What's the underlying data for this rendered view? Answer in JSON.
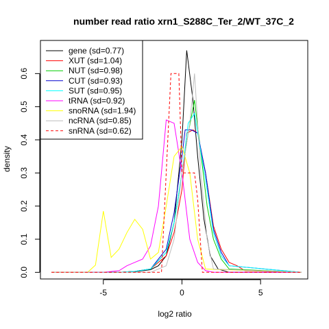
{
  "chart_data": {
    "type": "line",
    "title": "number read ratio xrn1_S288C_Ter_2/WT_37C_2",
    "xlabel": "log2 ratio",
    "ylabel": "density",
    "xlim": [
      -9,
      8
    ],
    "ylim": [
      -0.02,
      0.7
    ],
    "xticks": [
      -5,
      0,
      5
    ],
    "xtick_labels": [
      "-5",
      "0",
      "5"
    ],
    "yticks": [
      0.0,
      0.1,
      0.2,
      0.3,
      0.4,
      0.5,
      0.6
    ],
    "ytick_labels": [
      "0.0",
      "0.1",
      "0.2",
      "0.3",
      "0.4",
      "0.5",
      "0.6"
    ],
    "legend_position": "top-left",
    "series": [
      {
        "name": "gene (sd=0.77)",
        "color": "#000000",
        "dash": "solid",
        "x": [
          -8.3,
          -4.0,
          -3.0,
          -2.0,
          -1.5,
          -1.0,
          -0.5,
          0.0,
          0.3,
          0.7,
          1.0,
          1.4,
          1.8,
          2.3,
          3.0,
          7.6
        ],
        "y": [
          0.0,
          0.0,
          0.002,
          0.008,
          0.02,
          0.05,
          0.15,
          0.4,
          0.67,
          0.52,
          0.35,
          0.16,
          0.05,
          0.01,
          0.0,
          0.0
        ]
      },
      {
        "name": "XUT (sd=1.04)",
        "color": "#ff0000",
        "dash": "solid",
        "x": [
          -8.3,
          -4.0,
          -3.0,
          -2.0,
          -1.0,
          -0.5,
          0.0,
          0.3,
          0.7,
          1.0,
          1.5,
          2.0,
          2.5,
          3.0,
          3.5,
          4.0,
          7.6
        ],
        "y": [
          0.0,
          0.0,
          0.003,
          0.01,
          0.05,
          0.12,
          0.25,
          0.42,
          0.43,
          0.42,
          0.3,
          0.14,
          0.07,
          0.03,
          0.02,
          0.005,
          0.0
        ]
      },
      {
        "name": "NUT (sd=0.98)",
        "color": "#00cd00",
        "dash": "solid",
        "x": [
          -8.3,
          -4.0,
          -3.0,
          -2.0,
          -1.0,
          -0.5,
          0.0,
          0.4,
          0.8,
          1.2,
          1.6,
          2.0,
          2.5,
          3.0,
          7.6
        ],
        "y": [
          0.0,
          0.0,
          0.003,
          0.01,
          0.06,
          0.15,
          0.3,
          0.42,
          0.52,
          0.36,
          0.2,
          0.1,
          0.04,
          0.01,
          0.0
        ]
      },
      {
        "name": "CUT (sd=0.93)",
        "color": "#0000cd",
        "dash": "solid",
        "x": [
          -8.3,
          -4.0,
          -3.0,
          -2.0,
          -1.0,
          -0.5,
          0.0,
          0.2,
          0.6,
          1.0,
          1.5,
          2.0,
          2.5,
          3.0,
          7.6
        ],
        "y": [
          0.0,
          0.0,
          0.003,
          0.01,
          0.07,
          0.18,
          0.35,
          0.43,
          0.43,
          0.42,
          0.3,
          0.13,
          0.06,
          0.02,
          0.0
        ]
      },
      {
        "name": "SUT (sd=0.95)",
        "color": "#00ffff",
        "dash": "solid",
        "x": [
          -8.3,
          -4.0,
          -3.0,
          -2.0,
          -1.0,
          -0.5,
          0.0,
          0.4,
          0.8,
          1.0,
          1.5,
          2.0,
          2.5,
          3.0,
          7.6
        ],
        "y": [
          0.0,
          0.0,
          0.003,
          0.01,
          0.06,
          0.15,
          0.3,
          0.45,
          0.48,
          0.42,
          0.28,
          0.12,
          0.05,
          0.02,
          0.0
        ]
      },
      {
        "name": "tRNA (sd=0.92)",
        "color": "#ff00ff",
        "dash": "solid",
        "x": [
          -8.3,
          -5.0,
          -4.0,
          -3.5,
          -3.0,
          -2.5,
          -2.0,
          -1.5,
          -1.0,
          -0.5,
          0.0,
          0.5,
          1.0,
          1.5,
          2.0,
          7.6
        ],
        "y": [
          0.0,
          0.0,
          0.005,
          0.02,
          0.03,
          0.04,
          0.08,
          0.2,
          0.46,
          0.45,
          0.3,
          0.1,
          0.03,
          0.005,
          0.0,
          0.0
        ]
      },
      {
        "name": "snoRNA (sd=1.94)",
        "color": "#ffff00",
        "dash": "solid",
        "x": [
          -8.3,
          -6.0,
          -5.5,
          -5.0,
          -4.5,
          -4.0,
          -3.5,
          -3.0,
          -2.5,
          -2.0,
          -1.5,
          -1.0,
          -0.5,
          0.0,
          0.5,
          1.0,
          1.5,
          7.6
        ],
        "y": [
          0.0,
          0.0,
          0.022,
          0.185,
          0.045,
          0.07,
          0.12,
          0.16,
          0.13,
          0.04,
          0.06,
          0.2,
          0.35,
          0.38,
          0.3,
          0.1,
          0.01,
          0.0
        ]
      },
      {
        "name": "ncRNA (sd=0.85)",
        "color": "#bebebe",
        "dash": "solid",
        "x": [
          -8.3,
          -2.0,
          -1.0,
          -0.5,
          0.0,
          0.5,
          0.8,
          1.2,
          1.6,
          2.0,
          7.6
        ],
        "y": [
          0.0,
          0.0,
          0.02,
          0.1,
          0.3,
          0.45,
          0.6,
          0.3,
          0.1,
          0.01,
          0.0
        ]
      },
      {
        "name": "snRNA (sd=0.62)",
        "color": "#ff0000",
        "dash": "dashed",
        "x": [
          -8.3,
          -1.5,
          -1.3,
          -0.7,
          -0.2,
          0.0,
          0.8,
          1.0,
          1.3,
          1.5,
          7.6
        ],
        "y": [
          0.0,
          0.0,
          0.0,
          0.6,
          0.6,
          0.3,
          0.3,
          0.22,
          0.0,
          0.0,
          0.0
        ]
      }
    ]
  }
}
